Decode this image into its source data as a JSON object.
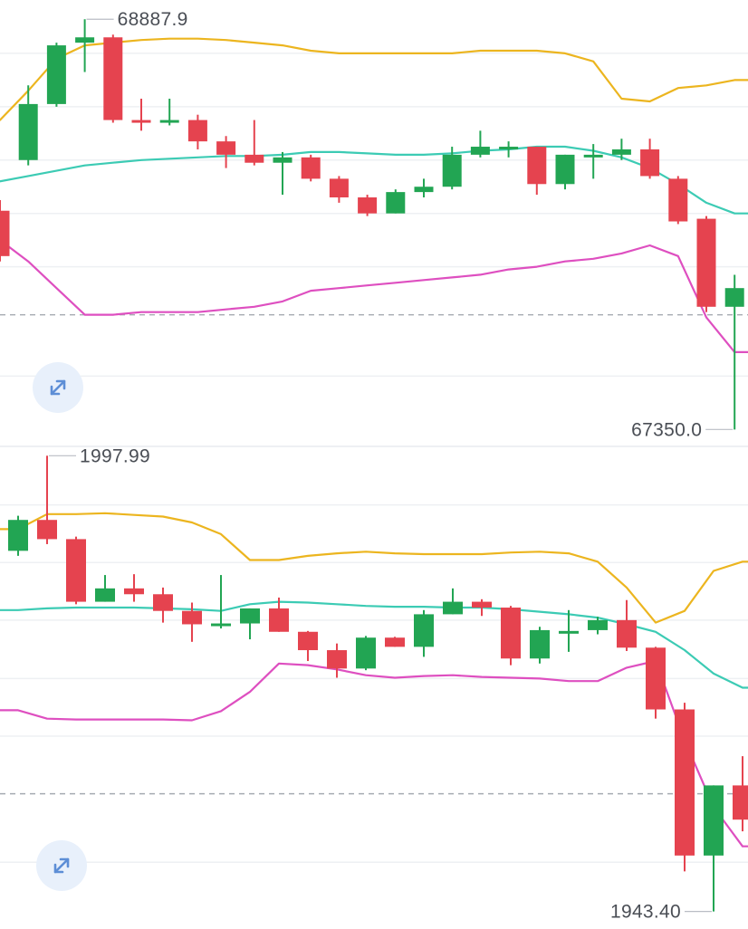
{
  "colors": {
    "up": "#22a553",
    "down": "#e5434f",
    "upper_band": "#ecb51f",
    "middle_band": "#3ccbb4",
    "lower_band": "#de4fc0",
    "grid": "#eef0f3",
    "dashed": "#a6abb2",
    "button_bg": "#e8f0fb",
    "button_icon": "#5d8ed6"
  },
  "icons": {
    "expand": "expand-arrows-icon"
  },
  "chart_data": [
    {
      "type": "candlestick",
      "name": "",
      "high_label": "68887.9",
      "low_label": "67350.0",
      "ylim": [
        67290,
        68960
      ],
      "grid_levels": [
        68760,
        68560,
        68360,
        68160,
        67960,
        67550
      ],
      "dashed_level": 67780,
      "candles": [
        {
          "o": 68170,
          "c": 68000,
          "h": 68210,
          "l": 67980
        },
        {
          "o": 68360,
          "c": 68570,
          "h": 68640,
          "l": 68340
        },
        {
          "o": 68570,
          "c": 68790,
          "h": 68800,
          "l": 68560
        },
        {
          "o": 68800,
          "c": 68820,
          "h": 68887.9,
          "l": 68690
        },
        {
          "o": 68820,
          "c": 68510,
          "h": 68830,
          "l": 68500
        },
        {
          "o": 68510,
          "c": 68500,
          "h": 68590,
          "l": 68470
        },
        {
          "o": 68500,
          "c": 68510,
          "h": 68590,
          "l": 68490
        },
        {
          "o": 68510,
          "c": 68430,
          "h": 68530,
          "l": 68400
        },
        {
          "o": 68430,
          "c": 68380,
          "h": 68450,
          "l": 68330
        },
        {
          "o": 68380,
          "c": 68350,
          "h": 68510,
          "l": 68340
        },
        {
          "o": 68350,
          "c": 68370,
          "h": 68390,
          "l": 68230
        },
        {
          "o": 68370,
          "c": 68290,
          "h": 68380,
          "l": 68280
        },
        {
          "o": 68290,
          "c": 68220,
          "h": 68300,
          "l": 68200
        },
        {
          "o": 68220,
          "c": 68160,
          "h": 68230,
          "l": 68150
        },
        {
          "o": 68160,
          "c": 68240,
          "h": 68250,
          "l": 68160
        },
        {
          "o": 68240,
          "c": 68260,
          "h": 68290,
          "l": 68220
        },
        {
          "o": 68260,
          "c": 68380,
          "h": 68410,
          "l": 68250
        },
        {
          "o": 68380,
          "c": 68410,
          "h": 68470,
          "l": 68370
        },
        {
          "o": 68410,
          "c": 68410,
          "h": 68430,
          "l": 68370
        },
        {
          "o": 68410,
          "c": 68270,
          "h": 68410,
          "l": 68230
        },
        {
          "o": 68270,
          "c": 68380,
          "h": 68380,
          "l": 68250
        },
        {
          "o": 68380,
          "c": 68380,
          "h": 68420,
          "l": 68290
        },
        {
          "o": 68380,
          "c": 68400,
          "h": 68440,
          "l": 68360
        },
        {
          "o": 68400,
          "c": 68300,
          "h": 68440,
          "l": 68290
        },
        {
          "o": 68290,
          "c": 68130,
          "h": 68300,
          "l": 68120
        },
        {
          "o": 68140,
          "c": 67810,
          "h": 68150,
          "l": 67790
        },
        {
          "o": 67810,
          "c": 67880,
          "h": 67930,
          "l": 67350.0
        }
      ],
      "upper_band": [
        68510,
        68620,
        68740,
        68790,
        68800,
        68810,
        68815,
        68815,
        68810,
        68800,
        68790,
        68770,
        68760,
        68760,
        68760,
        68760,
        68760,
        68770,
        68770,
        68770,
        68760,
        68730,
        68590,
        68580,
        68630,
        68640,
        68660
      ],
      "middle_band": [
        68280,
        68300,
        68320,
        68340,
        68350,
        68360,
        68365,
        68370,
        68375,
        68375,
        68380,
        68390,
        68390,
        68385,
        68380,
        68380,
        68385,
        68395,
        68400,
        68410,
        68410,
        68395,
        68370,
        68330,
        68270,
        68200,
        68160
      ],
      "lower_band": [
        68060,
        67980,
        67880,
        67780,
        67780,
        67790,
        67790,
        67790,
        67800,
        67810,
        67830,
        67870,
        67880,
        67890,
        67900,
        67910,
        67920,
        67930,
        67950,
        67960,
        67980,
        67990,
        68010,
        68040,
        68000,
        67770,
        67640
      ]
    },
    {
      "type": "candlestick",
      "name": "",
      "high_label": "1997.99",
      "low_label": "1943.40",
      "ylim": [
        1941.3,
        1999.0
      ],
      "grid_levels": [
        1992.1,
        1985.2,
        1978.3,
        1971.3,
        1964.4,
        1949.3
      ],
      "dashed_level": 1957.5,
      "candles": [
        {
          "o": 1986.6,
          "c": 1990.3,
          "h": 1990.8,
          "l": 1986.0
        },
        {
          "o": 1990.3,
          "c": 1988.0,
          "h": 1997.99,
          "l": 1987.4
        },
        {
          "o": 1988.0,
          "c": 1980.5,
          "h": 1988.3,
          "l": 1980.2
        },
        {
          "o": 1980.5,
          "c": 1982.1,
          "h": 1983.7,
          "l": 1980.5
        },
        {
          "o": 1982.1,
          "c": 1981.4,
          "h": 1983.8,
          "l": 1980.5
        },
        {
          "o": 1981.4,
          "c": 1979.4,
          "h": 1982.2,
          "l": 1978.0
        },
        {
          "o": 1979.4,
          "c": 1977.8,
          "h": 1980.4,
          "l": 1975.7
        },
        {
          "o": 1977.7,
          "c": 1977.9,
          "h": 1983.7,
          "l": 1977.3
        },
        {
          "o": 1977.9,
          "c": 1979.7,
          "h": 1979.7,
          "l": 1976.0
        },
        {
          "o": 1979.7,
          "c": 1976.9,
          "h": 1981.0,
          "l": 1976.9
        },
        {
          "o": 1976.9,
          "c": 1974.7,
          "h": 1977.0,
          "l": 1973.4
        },
        {
          "o": 1974.7,
          "c": 1972.5,
          "h": 1975.5,
          "l": 1971.4
        },
        {
          "o": 1972.5,
          "c": 1976.2,
          "h": 1976.4,
          "l": 1972.3
        },
        {
          "o": 1976.2,
          "c": 1975.1,
          "h": 1976.3,
          "l": 1975.1
        },
        {
          "o": 1975.1,
          "c": 1979.0,
          "h": 1979.5,
          "l": 1973.9
        },
        {
          "o": 1979.0,
          "c": 1980.5,
          "h": 1982.1,
          "l": 1979.0
        },
        {
          "o": 1980.5,
          "c": 1979.8,
          "h": 1980.8,
          "l": 1978.8
        },
        {
          "o": 1979.8,
          "c": 1973.7,
          "h": 1980.0,
          "l": 1972.9
        },
        {
          "o": 1973.7,
          "c": 1977.1,
          "h": 1977.5,
          "l": 1973.1
        },
        {
          "o": 1977.0,
          "c": 1977.0,
          "h": 1979.5,
          "l": 1974.5
        },
        {
          "o": 1977.1,
          "c": 1978.3,
          "h": 1978.7,
          "l": 1976.6
        },
        {
          "o": 1978.3,
          "c": 1975.0,
          "h": 1980.7,
          "l": 1974.6
        },
        {
          "o": 1975.0,
          "c": 1967.6,
          "h": 1975.1,
          "l": 1966.5
        },
        {
          "o": 1967.6,
          "c": 1950.1,
          "h": 1968.4,
          "l": 1948.2
        },
        {
          "o": 1950.1,
          "c": 1958.5,
          "h": 1958.5,
          "l": 1943.4
        },
        {
          "o": 1958.5,
          "c": 1954.4,
          "h": 1962.0,
          "l": 1953.0
        }
      ],
      "upper_band": [
        1989.2,
        1991.0,
        1991.0,
        1991.1,
        1990.9,
        1990.7,
        1990.0,
        1988.6,
        1985.5,
        1985.5,
        1986.0,
        1986.3,
        1986.5,
        1986.3,
        1986.2,
        1986.2,
        1986.2,
        1986.4,
        1986.5,
        1986.3,
        1985.3,
        1982.2,
        1978.0,
        1979.4,
        1984.2,
        1985.3
      ],
      "middle_band": [
        1979.5,
        1979.7,
        1979.8,
        1979.8,
        1979.8,
        1979.7,
        1979.6,
        1979.4,
        1980.2,
        1980.5,
        1980.4,
        1980.2,
        1980.0,
        1979.9,
        1979.9,
        1979.8,
        1979.8,
        1979.6,
        1979.3,
        1979.0,
        1978.6,
        1977.8,
        1976.9,
        1974.7,
        1971.9,
        1970.2
      ],
      "lower_band": [
        1967.5,
        1966.5,
        1966.4,
        1966.4,
        1966.4,
        1966.4,
        1966.3,
        1967.4,
        1969.7,
        1973.1,
        1972.9,
        1972.4,
        1971.7,
        1971.4,
        1971.6,
        1971.7,
        1971.5,
        1971.4,
        1971.3,
        1971.0,
        1971.0,
        1972.6,
        1973.4,
        1963.9,
        1955.9,
        1951.2
      ]
    }
  ]
}
